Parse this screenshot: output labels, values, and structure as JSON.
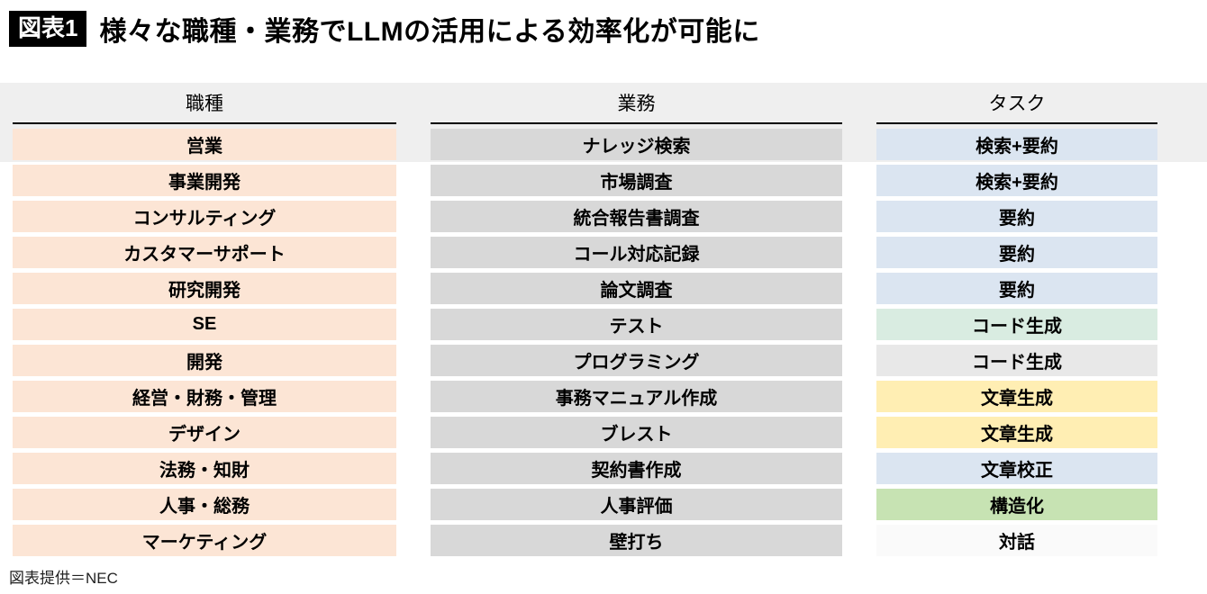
{
  "figure": {
    "badge": "図表1",
    "title": "様々な職種・業務でLLMの活用による効率化が可能に",
    "credit": "図表提供＝NEC"
  },
  "colors": {
    "header_band": "#efefef",
    "job": "#fce5d5",
    "work": "#d8d8d8",
    "task_blue": "#dbe5f1",
    "task_teal": "#d9ece1",
    "task_gray": "#e8e8e8",
    "task_yellow": "#ffeeb3",
    "task_green": "#c7e3b3",
    "task_white": "#fafafa"
  },
  "chart_data": {
    "type": "table",
    "title": "様々な職種・業務でLLMの活用による効率化が可能に",
    "columns": [
      "職種",
      "業務",
      "タスク"
    ],
    "rows": [
      {
        "job": "営業",
        "work": "ナレッジ検索",
        "task": "検索+要約",
        "task_color": "task_blue"
      },
      {
        "job": "事業開発",
        "work": "市場調査",
        "task": "検索+要約",
        "task_color": "task_blue"
      },
      {
        "job": "コンサルティング",
        "work": "統合報告書調査",
        "task": "要約",
        "task_color": "task_blue"
      },
      {
        "job": "カスタマーサポート",
        "work": "コール対応記録",
        "task": "要約",
        "task_color": "task_blue"
      },
      {
        "job": "研究開発",
        "work": "論文調査",
        "task": "要約",
        "task_color": "task_blue"
      },
      {
        "job": "SE",
        "work": "テスト",
        "task": "コード生成",
        "task_color": "task_teal"
      },
      {
        "job": "開発",
        "work": "プログラミング",
        "task": "コード生成",
        "task_color": "task_gray"
      },
      {
        "job": "経営・財務・管理",
        "work": "事務マニュアル作成",
        "task": "文章生成",
        "task_color": "task_yellow"
      },
      {
        "job": "デザイン",
        "work": "ブレスト",
        "task": "文章生成",
        "task_color": "task_yellow"
      },
      {
        "job": "法務・知財",
        "work": "契約書作成",
        "task": "文章校正",
        "task_color": "task_blue"
      },
      {
        "job": "人事・総務",
        "work": "人事評価",
        "task": "構造化",
        "task_color": "task_green"
      },
      {
        "job": "マーケティング",
        "work": "壁打ち",
        "task": "対話",
        "task_color": "task_white"
      }
    ]
  }
}
